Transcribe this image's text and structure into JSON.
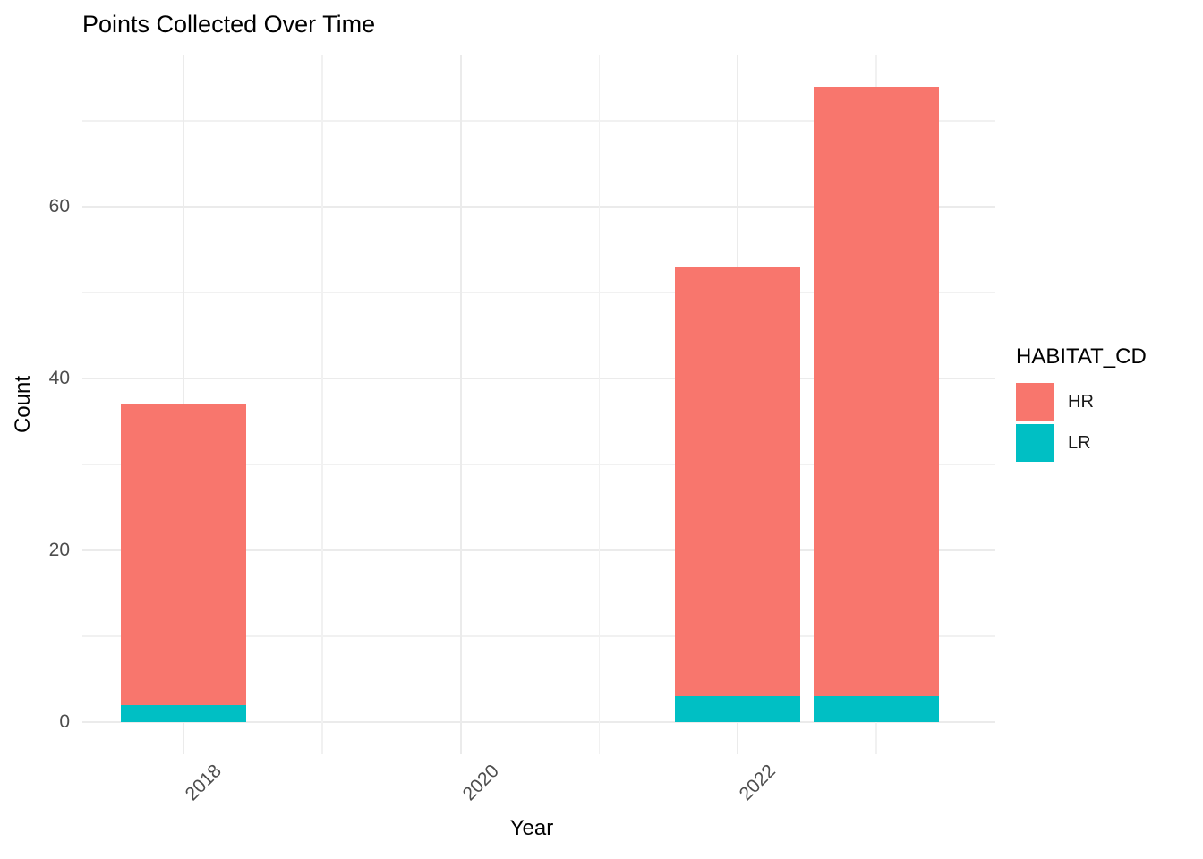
{
  "title": "Points Collected Over Time",
  "axes": {
    "x_title": "Year",
    "y_title": "Count"
  },
  "legend": {
    "title": "HABITAT_CD",
    "items": [
      {
        "label": "HR",
        "color": "#F8766D"
      },
      {
        "label": "LR",
        "color": "#00BFC4"
      }
    ]
  },
  "chart_data": {
    "type": "bar",
    "stacked": true,
    "title": "Points Collected Over Time",
    "xlabel": "Year",
    "ylabel": "Count",
    "categories": [
      2018,
      2022,
      2023
    ],
    "series": [
      {
        "name": "LR",
        "color": "#00BFC4",
        "values": [
          2,
          3,
          3
        ]
      },
      {
        "name": "HR",
        "color": "#F8766D",
        "values": [
          35,
          50,
          71
        ]
      }
    ],
    "totals": [
      37,
      53,
      74
    ],
    "x_ticks": [
      2018,
      2020,
      2022
    ],
    "x_minor_gridlines": [
      2019,
      2021,
      2023
    ],
    "y_ticks": [
      0,
      20,
      40,
      60
    ],
    "y_minor_gridlines": [
      10,
      30,
      50,
      70
    ],
    "ylim": [
      0,
      77
    ],
    "grid": true,
    "legend_title": "HABITAT_CD",
    "legend_position": "right",
    "background": "#FFFFFF",
    "gridline_color": "#EBEBEB",
    "axis_text_color": "#4D4D4D",
    "x_tick_angle_deg": 45
  }
}
